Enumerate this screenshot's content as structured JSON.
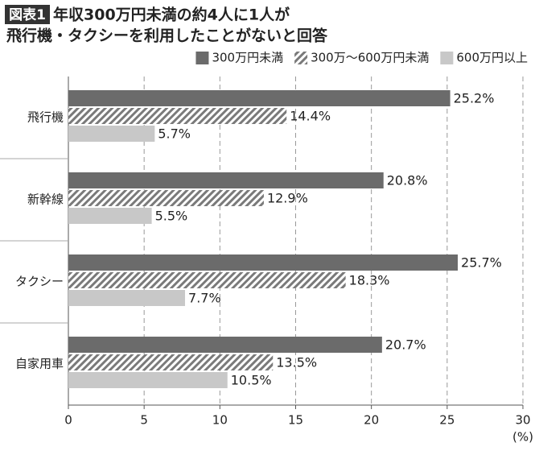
{
  "chart_data": {
    "type": "hbar",
    "badge": "図表1",
    "title": [
      "年収300万円未満の約4人に1人が",
      "飛行機・タクシーを利用したことがないと回答"
    ],
    "xlabel": "(%)",
    "categories": [
      "飛行機",
      "新幹線",
      "タクシー",
      "自家用車"
    ],
    "series": [
      {
        "name": "300万円未満",
        "color": "#6b6b6b",
        "hatch": false,
        "values": [
          25.2,
          20.8,
          25.7,
          20.7
        ],
        "value_labels": [
          "25.2%",
          "20.8%",
          "25.7%",
          "20.7%"
        ]
      },
      {
        "name": "300万～600万円未満",
        "color": "#7a7a7a",
        "hatch": true,
        "values": [
          14.4,
          12.9,
          18.3,
          13.5
        ],
        "value_labels": [
          "14.4%",
          "12.9%",
          "18.3%",
          "13.5%"
        ]
      },
      {
        "name": "600万円以上",
        "color": "#c8c8c8",
        "hatch": false,
        "values": [
          5.7,
          5.5,
          7.7,
          10.5
        ],
        "value_labels": [
          "5.7%",
          "5.5%",
          "7.7%",
          "10.5%"
        ]
      }
    ],
    "xlim": [
      0,
      30
    ],
    "xticks": [
      0,
      5,
      10,
      15,
      20,
      25,
      30
    ],
    "grid": true
  }
}
